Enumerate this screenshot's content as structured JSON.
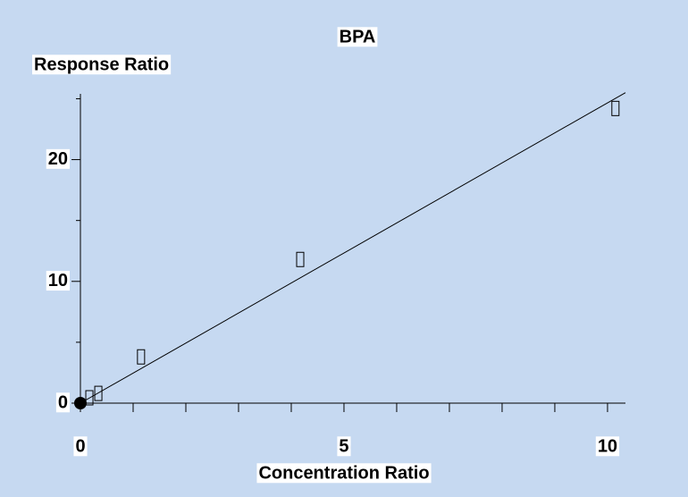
{
  "chart_data": {
    "type": "scatter",
    "title": "BPA",
    "y_label": "Response Ratio",
    "x_label": "Concentration Ratio",
    "x": [
      0.17,
      0.34,
      1.15,
      4.17,
      10.15
    ],
    "values": [
      0.44,
      0.8,
      3.8,
      11.8,
      24.2
    ],
    "origin_point": {
      "x": 0,
      "value": 0
    },
    "fit": {
      "x": [
        0,
        10.34
      ],
      "values": [
        0,
        25.5
      ]
    },
    "xlim": [
      0,
      10.34
    ],
    "ylim": [
      0,
      25.4
    ],
    "xticks": [
      0,
      5,
      10
    ],
    "yticks": [
      0,
      10,
      20
    ],
    "xminorticks": [
      1,
      2,
      3,
      4,
      6,
      7,
      8,
      9
    ],
    "yminorticks": [
      5,
      15,
      25
    ],
    "background": "#c6d9f1",
    "color": "#000000"
  }
}
